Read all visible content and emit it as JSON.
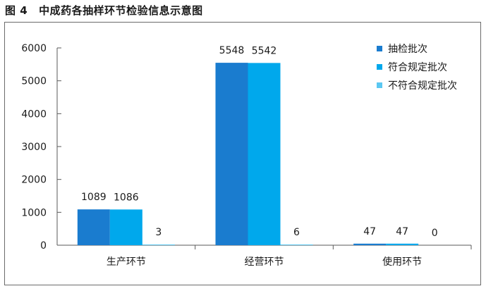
{
  "figure": {
    "number": "图 4",
    "title": "中成药各抽样环节检验信息示意图"
  },
  "colors": {
    "series": [
      "#1a7ccf",
      "#00a8ec",
      "#5bc8f2"
    ],
    "axis": "#5a5a5a",
    "text": "#1a1a1a"
  },
  "chart_data": {
    "type": "bar",
    "title": "中成药各抽样环节检验信息示意图",
    "categories": [
      "生产环节",
      "经营环节",
      "使用环节"
    ],
    "series": [
      {
        "name": "抽检批次",
        "values": [
          1089,
          5548,
          47
        ]
      },
      {
        "name": "符合规定批次",
        "values": [
          1086,
          5542,
          47
        ]
      },
      {
        "name": "不符合规定批次",
        "values": [
          3,
          6,
          0
        ]
      }
    ],
    "ylim": [
      0,
      6000
    ],
    "yticks": [
      0,
      1000,
      2000,
      3000,
      4000,
      5000,
      6000
    ],
    "grid": false,
    "legend": "top-right"
  }
}
